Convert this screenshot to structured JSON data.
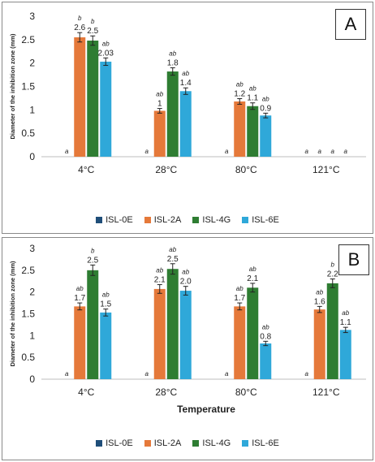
{
  "colors": {
    "ISL-0E": "#1f4e79",
    "ISL-2A": "#e5793a",
    "ISL-4G": "#2e7d32",
    "ISL-6E": "#2fa8d9"
  },
  "chart_data": [
    {
      "panel": "A",
      "type": "bar",
      "ylabel": "Diameter of the inhibition zone (mm)",
      "xlabel": "",
      "ylim": [
        0,
        3
      ],
      "yticks": [
        "0",
        "0.5",
        "1",
        "1.5",
        "2",
        "2.5",
        "3"
      ],
      "categories": [
        "4°C",
        "28°C",
        "80°C",
        "121°C"
      ],
      "series": [
        {
          "name": "ISL-0E",
          "values": [
            0,
            0,
            0,
            0
          ],
          "value_labels": [
            "",
            "",
            "",
            ""
          ],
          "letters": [
            "a",
            "a",
            "a",
            "a"
          ]
        },
        {
          "name": "ISL-2A",
          "values": [
            2.55,
            0.98,
            1.18,
            0
          ],
          "value_labels": [
            "2.6",
            "1",
            "1.2",
            ""
          ],
          "letters": [
            "b",
            "ab",
            "ab",
            "a"
          ],
          "errors": [
            0.1,
            0.05,
            0.06,
            0
          ]
        },
        {
          "name": "ISL-4G",
          "values": [
            2.48,
            1.82,
            1.08,
            0
          ],
          "value_labels": [
            "2.5",
            "1.8",
            "1.1",
            ""
          ],
          "letters": [
            "b",
            "ab",
            "ab",
            "a"
          ],
          "errors": [
            0.1,
            0.08,
            0.07,
            0
          ]
        },
        {
          "name": "ISL-6E",
          "values": [
            2.03,
            1.4,
            0.88,
            0
          ],
          "value_labels": [
            "2.03",
            "1.4",
            "0.9",
            ""
          ],
          "letters": [
            "ab",
            "ab",
            "ab",
            "a"
          ],
          "errors": [
            0.08,
            0.07,
            0.05,
            0
          ]
        }
      ],
      "legend": [
        "ISL-0E",
        "ISL-2A",
        "ISL-4G",
        "ISL-6E"
      ],
      "legend_position": "bottom"
    },
    {
      "panel": "B",
      "type": "bar",
      "ylabel": "Diameter of the inhibition zone (mm)",
      "xlabel": "Temperature",
      "ylim": [
        0,
        3
      ],
      "yticks": [
        "0",
        "0.5",
        "1",
        "1.5",
        "2",
        "2.5",
        "3"
      ],
      "categories": [
        "4°C",
        "28°C",
        "80°C",
        "121°C"
      ],
      "series": [
        {
          "name": "ISL-0E",
          "values": [
            0,
            0,
            0,
            0
          ],
          "value_labels": [
            "",
            "",
            "",
            ""
          ],
          "letters": [
            "a",
            "a",
            "a",
            "a"
          ]
        },
        {
          "name": "ISL-2A",
          "values": [
            1.67,
            2.07,
            1.67,
            1.6
          ],
          "value_labels": [
            "1.7",
            "2.1",
            "1.7",
            "1.6"
          ],
          "letters": [
            "ab",
            "ab",
            "ab",
            "ab"
          ],
          "errors": [
            0.08,
            0.1,
            0.08,
            0.07
          ]
        },
        {
          "name": "ISL-4G",
          "values": [
            2.5,
            2.53,
            2.1,
            2.2
          ],
          "value_labels": [
            "2.5",
            "2.5",
            "2.1",
            "2.2"
          ],
          "letters": [
            "b",
            "ab",
            "ab",
            "b"
          ],
          "errors": [
            0.12,
            0.12,
            0.1,
            0.1
          ]
        },
        {
          "name": "ISL-6E",
          "values": [
            1.53,
            2.03,
            0.82,
            1.13
          ],
          "value_labels": [
            "1.5",
            "2.0",
            "0.8",
            "1.1"
          ],
          "letters": [
            "ab",
            "ab",
            "ab",
            "ab"
          ],
          "errors": [
            0.08,
            0.1,
            0.05,
            0.06
          ]
        }
      ],
      "legend": [
        "ISL-0E",
        "ISL-2A",
        "ISL-4G",
        "ISL-6E"
      ],
      "legend_position": "bottom"
    }
  ],
  "panels": {
    "a_letter": "A",
    "b_letter": "B"
  }
}
